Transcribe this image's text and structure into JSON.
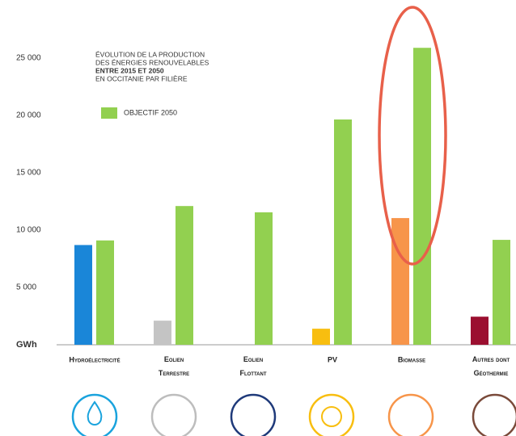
{
  "chart_data": {
    "type": "bar",
    "title_lines": [
      "ÉVOLUTION DE LA PRODUCTION",
      "DES ÉNERGIES RENOUVELABLES",
      "ENTRE 2015 ET 2050",
      "EN OCCITANIE PAR FILIÈRE"
    ],
    "y_label": "GWh",
    "categories": [
      "Hydroélectricité",
      "Eolien Terrestre",
      "Eolien Flottant",
      "PV",
      "Biomasse",
      "Autres dont Géothermie"
    ],
    "series": [
      {
        "colors": [
          "#1a86d8",
          "#c4c4c4",
          "#1f3a7a",
          "#f8be10",
          "#f7954a",
          "#9b0f30"
        ],
        "values": [
          8700,
          2100,
          null,
          1400,
          11050,
          2450
        ]
      },
      {
        "name": "OBJECTIF 2050",
        "color": "#92d050",
        "values": [
          9100,
          12100,
          11550,
          19650,
          25900,
          9150
        ]
      }
    ],
    "ylim": [
      0,
      27000
    ],
    "yticks": [
      {
        "value": 5000,
        "label": "5 000"
      },
      {
        "value": 10000,
        "label": "10 000"
      },
      {
        "value": 15000,
        "label": "15 000"
      },
      {
        "value": 20000,
        "label": "20 000"
      },
      {
        "value": 25000,
        "label": "25 000"
      }
    ]
  }
}
